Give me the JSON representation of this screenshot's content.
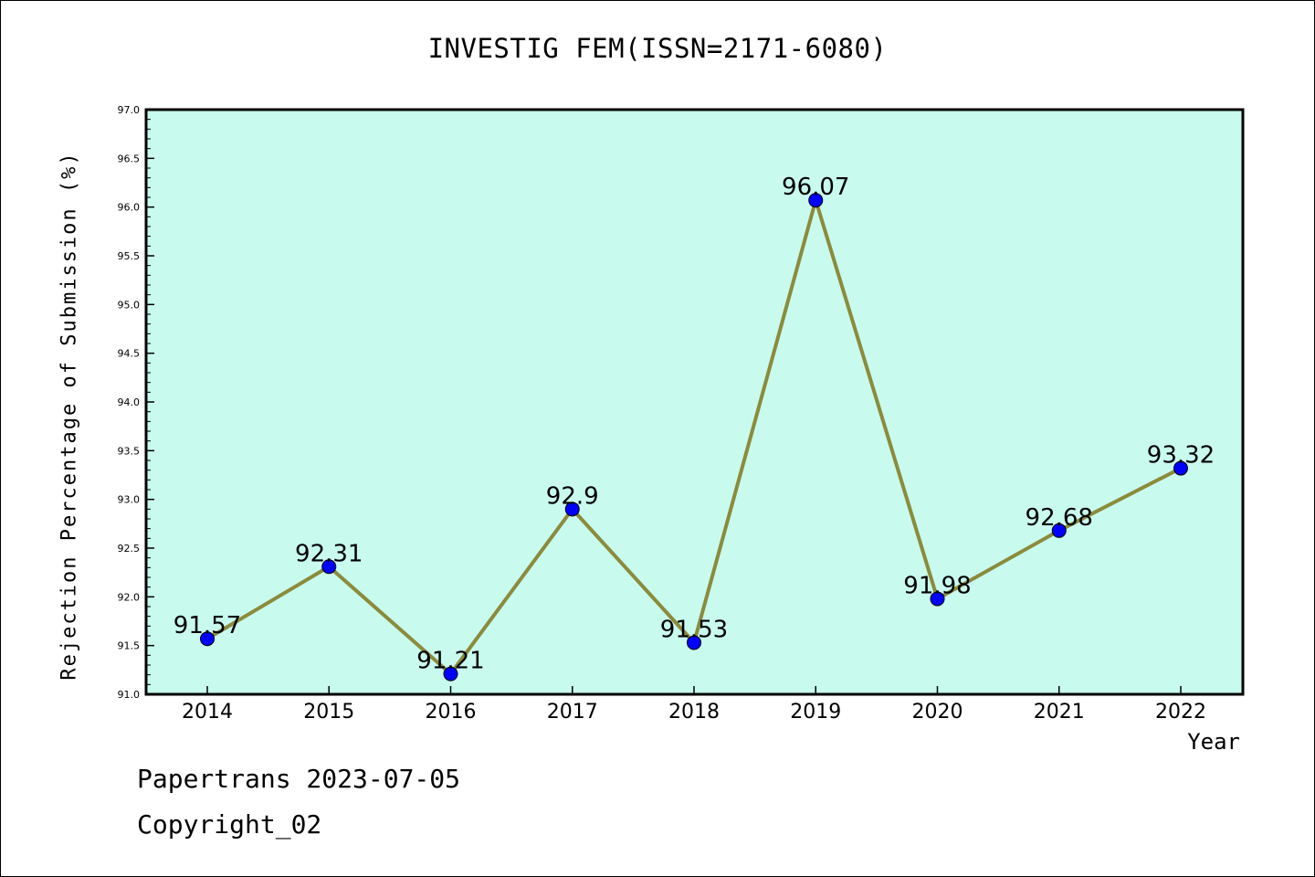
{
  "chart_data": {
    "type": "line",
    "title": "INVESTIG FEM(ISSN=2171-6080)",
    "xlabel": "Year",
    "ylabel": "Rejection Percentage of Submission (%)",
    "categories": [
      "2014",
      "2015",
      "2016",
      "2017",
      "2018",
      "2019",
      "2020",
      "2021",
      "2022"
    ],
    "values": [
      91.57,
      92.31,
      91.21,
      92.9,
      91.53,
      96.07,
      91.98,
      92.68,
      93.32
    ],
    "value_labels": [
      "91.57",
      "92.31",
      "91.21",
      "92.9",
      "91.53",
      "96.07",
      "91.98",
      "92.68",
      "93.32"
    ],
    "ylim": [
      91.0,
      97.0
    ],
    "yticks": [
      "91.0",
      "91.5",
      "92.0",
      "92.5",
      "93.0",
      "93.5",
      "94.0",
      "94.5",
      "95.0",
      "95.5",
      "96.0",
      "96.5",
      "97.0"
    ],
    "grid": false,
    "plot_background": "#c8fbee",
    "line_color": "#8b8b3c",
    "marker_color": "#0000ff"
  },
  "footer": {
    "line1": "Papertrans 2023-07-05",
    "line2": "Copyright_02"
  }
}
